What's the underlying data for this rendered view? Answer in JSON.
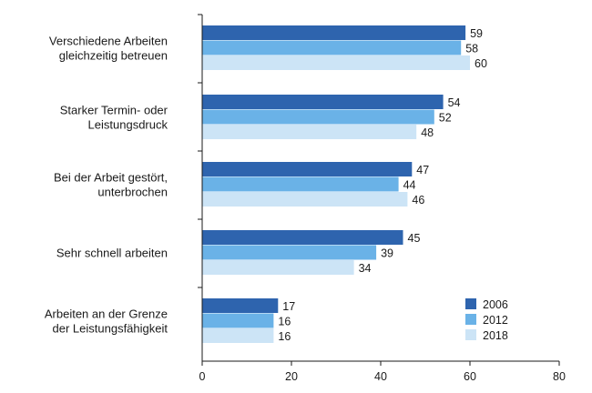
{
  "chart_data": {
    "type": "bar",
    "orientation": "horizontal",
    "categories": [
      [
        "Verschiedene Arbeiten",
        "gleichzeitig betreuen"
      ],
      [
        "Starker Termin- oder",
        "Leistungsdruck"
      ],
      [
        "Bei der Arbeit gestört,",
        "unterbrochen"
      ],
      [
        "Sehr schnell arbeiten"
      ],
      [
        "Arbeiten an der Grenze",
        "der Leistungsfähigkeit"
      ]
    ],
    "series": [
      {
        "name": "2006",
        "color": "#2e64ae",
        "values": [
          59,
          54,
          47,
          45,
          17
        ]
      },
      {
        "name": "2012",
        "color": "#6ab2e7",
        "values": [
          58,
          52,
          44,
          39,
          16
        ]
      },
      {
        "name": "2018",
        "color": "#cce4f6",
        "values": [
          60,
          48,
          46,
          34,
          16
        ]
      }
    ],
    "xlim": [
      0,
      80
    ],
    "xticks": [
      "0",
      "20",
      "40",
      "60",
      "80"
    ],
    "grid": false,
    "legend_position": "bottom-right",
    "title": "",
    "xlabel": "",
    "ylabel": ""
  }
}
